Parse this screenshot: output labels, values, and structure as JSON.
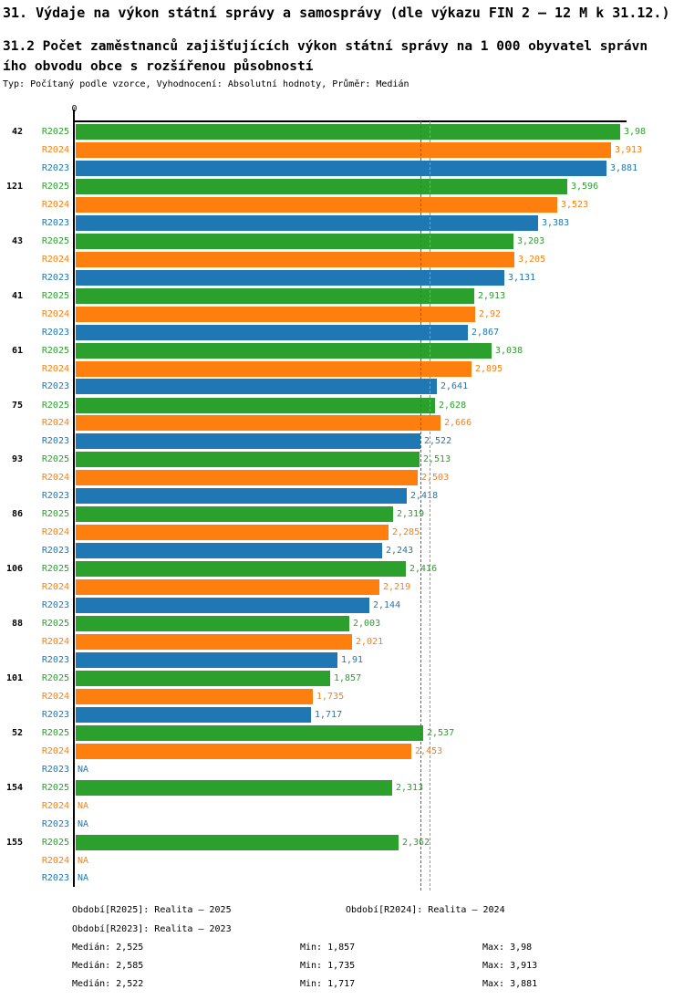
{
  "header": {
    "title": "31. Výdaje na výkon státní správy a samosprávy (dle výkazu FIN 2 – 12 M k 31.12.)",
    "subtitle_line1": "31.2 Počet zaměstnanců zajišťujících výkon státní správy na 1 000 obyvatel správn",
    "subtitle_line2": "ího obvodu obce s rozšířenou působností",
    "meta": "Typ: Počítaný podle vzorce, Vyhodnocení: Absolutní hodnoty, Průměr: Medián"
  },
  "chart_data": {
    "type": "bar",
    "orientation": "horizontal",
    "axis_zero_label": "0",
    "na_label": "NA",
    "xlim": [
      0,
      4.02
    ],
    "series_order": [
      "R2025",
      "R2024",
      "R2023"
    ],
    "colors": {
      "R2025": "#2ca02c",
      "R2024": "#ff7f0e",
      "R2023": "#1f77b4"
    },
    "groups": [
      {
        "label": "42",
        "values": {
          "R2025": "3,98",
          "R2024": "3,913",
          "R2023": "3,881"
        }
      },
      {
        "label": "121",
        "values": {
          "R2025": "3,596",
          "R2024": "3,523",
          "R2023": "3,383"
        }
      },
      {
        "label": "43",
        "values": {
          "R2025": "3,203",
          "R2024": "3,205",
          "R2023": "3,131"
        }
      },
      {
        "label": "41",
        "values": {
          "R2025": "2,913",
          "R2024": "2,92",
          "R2023": "2,867"
        }
      },
      {
        "label": "61",
        "values": {
          "R2025": "3,038",
          "R2024": "2,895",
          "R2023": "2,641"
        }
      },
      {
        "label": "75",
        "values": {
          "R2025": "2,628",
          "R2024": "2,666",
          "R2023": "2,522"
        }
      },
      {
        "label": "93",
        "values": {
          "R2025": "2,513",
          "R2024": "2,503",
          "R2023": "2,418"
        }
      },
      {
        "label": "86",
        "values": {
          "R2025": "2,319",
          "R2024": "2,285",
          "R2023": "2,243"
        }
      },
      {
        "label": "106",
        "values": {
          "R2025": "2,416",
          "R2024": "2,219",
          "R2023": "2,144"
        }
      },
      {
        "label": "88",
        "values": {
          "R2025": "2,003",
          "R2024": "2,021",
          "R2023": "1,91"
        }
      },
      {
        "label": "101",
        "values": {
          "R2025": "1,857",
          "R2024": "1,735",
          "R2023": "1,717"
        }
      },
      {
        "label": "52",
        "values": {
          "R2025": "2,537",
          "R2024": "2,453",
          "R2023": "NA"
        }
      },
      {
        "label": "154",
        "values": {
          "R2025": "2,313",
          "R2024": "NA",
          "R2023": "NA"
        }
      },
      {
        "label": "155",
        "values": {
          "R2025": "2,362",
          "R2024": "NA",
          "R2023": "NA"
        }
      }
    ],
    "median_lines": {
      "R2025": 2.525,
      "R2024": 2.585,
      "R2023": 2.522
    }
  },
  "legend": {
    "items": [
      {
        "series": "R2025",
        "text": "Období[R2025]: Realita – 2025"
      },
      {
        "series": "R2024",
        "text": "Období[R2024]: Realita – 2024"
      },
      {
        "series": "R2023",
        "text": "Období[R2023]: Realita – 2023"
      }
    ]
  },
  "stats": {
    "rows": [
      {
        "series": "R2025",
        "median": "Medián: 2,525",
        "min": "Min: 1,857",
        "max": "Max: 3,98"
      },
      {
        "series": "R2024",
        "median": "Medián: 2,585",
        "min": "Min: 1,735",
        "max": "Max: 3,913"
      },
      {
        "series": "R2023",
        "median": "Medián: 2,522",
        "min": "Min: 1,717",
        "max": "Max: 3,881"
      }
    ]
  }
}
